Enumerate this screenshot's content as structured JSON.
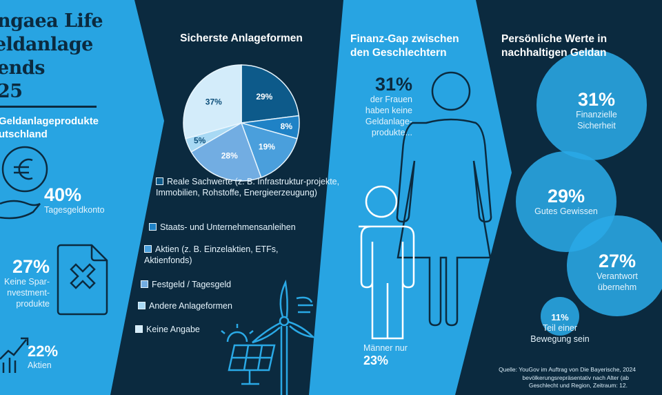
{
  "colors": {
    "light_panel": "#28a4e2",
    "dark_panel": "#0b2a3f",
    "navy_text": "#0b2a3f",
    "bubble": "#2aa9e6"
  },
  "left_panel": {
    "title_lines": [
      "ngaea Life",
      "eldanlage",
      "ends",
      "25"
    ],
    "subtitle_lines": [
      "Geldanlageprodukte",
      "utschland"
    ],
    "stats": [
      {
        "value": "40%",
        "label_lines": [
          "Tagesgeldkonto"
        ],
        "icon": "euro-coin-hand-icon"
      },
      {
        "value": "27%",
        "label_lines": [
          "Keine Spar-",
          "nvestment-",
          "produkte"
        ],
        "icon": "document-x-icon"
      },
      {
        "value": "22%",
        "label_lines": [
          "Aktien"
        ],
        "icon": "growth-chart-icon"
      }
    ]
  },
  "pie_panel": {
    "title": "Sicherste Anlageformen",
    "legend": [
      "Reale Sachwerte (z. B. Infrastruktur-projekte, Immobilien, Rohstoffe, Energieerzeugung)",
      "Staats- und Unternehmensanleihen",
      "Aktien (z. B. Einzelaktien, ETFs, Aktienfonds)",
      "Festgeld / Tagesgeld",
      "Andere Anlageformen",
      "Keine Angabe"
    ],
    "icons": [
      "solar-panel-icon",
      "wind-turbine-icon"
    ]
  },
  "chart_data": {
    "type": "pie",
    "title": "Sicherste Anlageformen",
    "categories": [
      "Reale Sachwerte (z. B. Infrastruktur-projekte, Immobilien, Rohstoffe, Energieerzeugung)",
      "Staats- und Unternehmensanleihen",
      "Aktien (z. B. Einzelaktien, ETFs, Aktienfonds)",
      "Festgeld / Tagesgeld",
      "Andere Anlageformen",
      "Keine Angabe"
    ],
    "values": [
      29,
      8,
      19,
      28,
      5,
      37
    ],
    "labels": [
      "29%",
      "8%",
      "19%",
      "28%",
      "5%",
      "37%"
    ],
    "colors": [
      "#0d5a8a",
      "#1f82c6",
      "#4a9fdc",
      "#72ade2",
      "#a8d9f4",
      "#d3ecfa"
    ],
    "label_colors": [
      "#ffffff",
      "#ffffff",
      "#ffffff",
      "#ffffff",
      "#0d4f7a",
      "#0d4f7a"
    ],
    "legend_placement": "bottom"
  },
  "gap_panel": {
    "title_lines": [
      "Finanz-Gap zwischen",
      "den Geschlechtern"
    ],
    "women_value": "31%",
    "women_lines": [
      "der Frauen",
      "haben keine",
      "Geldanlage-",
      "produkte..."
    ],
    "men_label": "Männer nur",
    "men_value": "23%",
    "icons": [
      "woman-figure-icon",
      "man-figure-icon"
    ]
  },
  "values_panel": {
    "title_lines": [
      "Persönliche Werte in",
      "nachhaltigen Geldan"
    ],
    "bubbles": [
      {
        "value": "31%",
        "label_lines": [
          "Finanzielle",
          "Sicherheit"
        ]
      },
      {
        "value": "29%",
        "label_lines": [
          "Gutes Gewissen"
        ]
      },
      {
        "value": "27%",
        "label_lines": [
          "Verantwort",
          "übernehm"
        ]
      },
      {
        "value": "11%",
        "label_lines": [
          "Teil einer",
          "Bewegung sein"
        ]
      }
    ],
    "source_lines": [
      "Quelle: YouGov im Auftrag von Die Bayerische, 2024",
      "bevölkerungsrepräsentativ nach Alter (ab",
      "Geschlecht und Region, Zeitraum: 12."
    ]
  }
}
